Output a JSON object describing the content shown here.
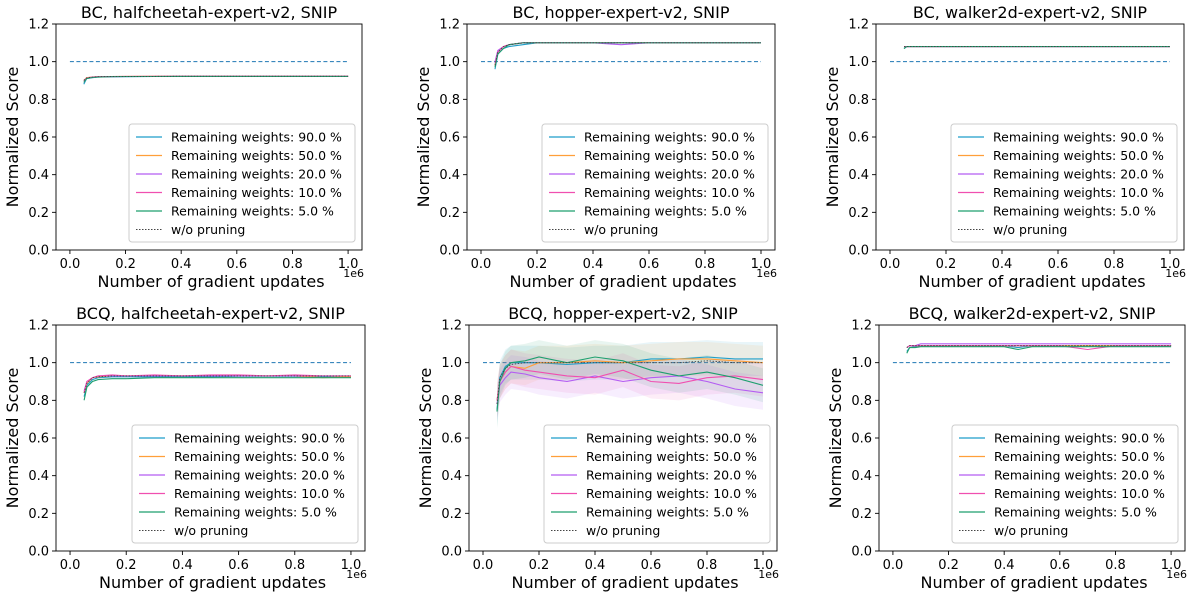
{
  "figure": {
    "colors": {
      "baseline": "#1f77b4",
      "series": [
        "#1f9ec9",
        "#ff9f3a",
        "#b45cf2",
        "#f04fb0",
        "#1e9f6e"
      ],
      "reference": "#444444"
    }
  },
  "chart_data": [
    {
      "type": "line",
      "title": "BC, halfcheetah-expert-v2, SNIP",
      "xlabel": "Number of gradient updates",
      "ylabel": "Normalized Score",
      "x_offset_label": "1e6",
      "xlim": [
        -0.05,
        1.05
      ],
      "ylim": [
        0.0,
        1.2
      ],
      "xticks": [
        "0.0",
        "0.2",
        "0.4",
        "0.6",
        "0.8",
        "1.0"
      ],
      "yticks": [
        "0.0",
        "0.2",
        "0.4",
        "0.6",
        "0.8",
        "1.0",
        "1.2"
      ],
      "grid": false,
      "legend_position": "lower-right",
      "baseline": 1.0,
      "x": [
        0.05,
        0.06,
        0.08,
        0.1,
        0.15,
        0.2,
        0.3,
        0.4,
        0.5,
        0.6,
        0.7,
        0.8,
        0.9,
        1.0
      ],
      "series": [
        {
          "name": "Remaining weights: 90.0 %",
          "values": [
            0.88,
            0.91,
            0.915,
            0.918,
            0.92,
            0.92,
            0.921,
            0.922,
            0.922,
            0.922,
            0.922,
            0.922,
            0.922,
            0.922
          ]
        },
        {
          "name": "Remaining weights: 50.0 %",
          "values": [
            0.9,
            0.915,
            0.918,
            0.92,
            0.921,
            0.922,
            0.923,
            0.923,
            0.923,
            0.923,
            0.923,
            0.923,
            0.923,
            0.923
          ]
        },
        {
          "name": "Remaining weights: 20.0 %",
          "values": [
            0.89,
            0.912,
            0.917,
            0.919,
            0.92,
            0.921,
            0.922,
            0.922,
            0.922,
            0.922,
            0.922,
            0.922,
            0.922,
            0.922
          ]
        },
        {
          "name": "Remaining weights: 10.0 %",
          "values": [
            0.9,
            0.913,
            0.918,
            0.92,
            0.921,
            0.922,
            0.922,
            0.923,
            0.923,
            0.923,
            0.923,
            0.923,
            0.923,
            0.923
          ]
        },
        {
          "name": "Remaining weights: 5.0 %",
          "values": [
            0.89,
            0.91,
            0.916,
            0.918,
            0.92,
            0.921,
            0.921,
            0.922,
            0.922,
            0.922,
            0.922,
            0.922,
            0.922,
            0.922
          ]
        },
        {
          "name": "w/o pruning",
          "values": [
            0.9,
            0.914,
            0.918,
            0.92,
            0.921,
            0.922,
            0.922,
            0.923,
            0.923,
            0.923,
            0.923,
            0.923,
            0.923,
            0.923
          ]
        }
      ]
    },
    {
      "type": "line",
      "title": "BC, hopper-expert-v2, SNIP",
      "xlabel": "Number of gradient updates",
      "ylabel": "Normalized Score",
      "x_offset_label": "1e6",
      "xlim": [
        -0.05,
        1.05
      ],
      "ylim": [
        0.0,
        1.2
      ],
      "xticks": [
        "0.0",
        "0.2",
        "0.4",
        "0.6",
        "0.8",
        "1.0"
      ],
      "yticks": [
        "0.0",
        "0.2",
        "0.4",
        "0.6",
        "0.8",
        "1.0",
        "1.2"
      ],
      "grid": false,
      "legend_position": "lower-right",
      "baseline": 1.0,
      "x": [
        0.05,
        0.06,
        0.08,
        0.1,
        0.15,
        0.2,
        0.3,
        0.4,
        0.5,
        0.6,
        0.7,
        0.8,
        0.9,
        1.0
      ],
      "series": [
        {
          "name": "Remaining weights: 90.0 %",
          "values": [
            0.96,
            1.04,
            1.07,
            1.08,
            1.09,
            1.1,
            1.1,
            1.1,
            1.1,
            1.1,
            1.1,
            1.1,
            1.1,
            1.1
          ]
        },
        {
          "name": "Remaining weights: 50.0 %",
          "values": [
            0.98,
            1.05,
            1.08,
            1.09,
            1.1,
            1.1,
            1.1,
            1.1,
            1.1,
            1.1,
            1.1,
            1.1,
            1.1,
            1.1
          ]
        },
        {
          "name": "Remaining weights: 20.0 %",
          "values": [
            1.0,
            1.06,
            1.08,
            1.09,
            1.1,
            1.1,
            1.1,
            1.1,
            1.09,
            1.1,
            1.1,
            1.1,
            1.1,
            1.1
          ]
        },
        {
          "name": "Remaining weights: 10.0 %",
          "values": [
            0.99,
            1.05,
            1.08,
            1.09,
            1.1,
            1.1,
            1.1,
            1.1,
            1.1,
            1.1,
            1.1,
            1.1,
            1.1,
            1.1
          ]
        },
        {
          "name": "Remaining weights: 5.0 %",
          "values": [
            0.97,
            1.04,
            1.07,
            1.09,
            1.1,
            1.1,
            1.1,
            1.1,
            1.1,
            1.1,
            1.1,
            1.1,
            1.1,
            1.1
          ]
        },
        {
          "name": "w/o pruning",
          "values": [
            0.98,
            1.05,
            1.08,
            1.09,
            1.1,
            1.1,
            1.1,
            1.1,
            1.1,
            1.1,
            1.1,
            1.1,
            1.1,
            1.1
          ]
        }
      ]
    },
    {
      "type": "line",
      "title": "BC, walker2d-expert-v2, SNIP",
      "xlabel": "Number of gradient updates",
      "ylabel": "Normalized Score",
      "x_offset_label": "1e6",
      "xlim": [
        -0.05,
        1.05
      ],
      "ylim": [
        0.0,
        1.2
      ],
      "xticks": [
        "0.0",
        "0.2",
        "0.4",
        "0.6",
        "0.8",
        "1.0"
      ],
      "yticks": [
        "0.0",
        "0.2",
        "0.4",
        "0.6",
        "0.8",
        "1.0",
        "1.2"
      ],
      "grid": false,
      "legend_position": "lower-right",
      "baseline": 1.0,
      "x": [
        0.05,
        0.06,
        0.08,
        0.1,
        0.15,
        0.2,
        0.3,
        0.4,
        0.5,
        0.6,
        0.7,
        0.8,
        0.9,
        1.0
      ],
      "series": [
        {
          "name": "Remaining weights: 90.0 %",
          "values": [
            1.07,
            1.08,
            1.08,
            1.08,
            1.08,
            1.08,
            1.08,
            1.08,
            1.08,
            1.08,
            1.08,
            1.08,
            1.08,
            1.08
          ]
        },
        {
          "name": "Remaining weights: 50.0 %",
          "values": [
            1.08,
            1.08,
            1.08,
            1.08,
            1.08,
            1.08,
            1.08,
            1.08,
            1.08,
            1.08,
            1.08,
            1.08,
            1.08,
            1.08
          ]
        },
        {
          "name": "Remaining weights: 20.0 %",
          "values": [
            1.08,
            1.08,
            1.08,
            1.08,
            1.08,
            1.08,
            1.08,
            1.08,
            1.08,
            1.08,
            1.08,
            1.08,
            1.08,
            1.08
          ]
        },
        {
          "name": "Remaining weights: 10.0 %",
          "values": [
            1.08,
            1.08,
            1.08,
            1.08,
            1.08,
            1.08,
            1.08,
            1.08,
            1.08,
            1.08,
            1.08,
            1.08,
            1.08,
            1.08
          ]
        },
        {
          "name": "Remaining weights: 5.0 %",
          "values": [
            1.07,
            1.08,
            1.08,
            1.08,
            1.08,
            1.08,
            1.08,
            1.08,
            1.08,
            1.08,
            1.08,
            1.08,
            1.08,
            1.08
          ]
        },
        {
          "name": "w/o pruning",
          "values": [
            1.08,
            1.08,
            1.08,
            1.08,
            1.08,
            1.08,
            1.08,
            1.08,
            1.08,
            1.08,
            1.08,
            1.08,
            1.08,
            1.08
          ]
        }
      ]
    },
    {
      "type": "line",
      "title": "BCQ, halfcheetah-expert-v2, SNIP",
      "xlabel": "Number of gradient updates",
      "ylabel": "Normalized Score",
      "x_offset_label": "1e6",
      "xlim": [
        -0.05,
        1.05
      ],
      "ylim": [
        0.0,
        1.2
      ],
      "xticks": [
        "0.0",
        "0.2",
        "0.4",
        "0.6",
        "0.8",
        "1.0"
      ],
      "yticks": [
        "0.0",
        "0.2",
        "0.4",
        "0.6",
        "0.8",
        "1.0",
        "1.2"
      ],
      "grid": false,
      "legend_position": "lower-right",
      "baseline": 1.0,
      "x": [
        0.05,
        0.06,
        0.08,
        0.1,
        0.15,
        0.2,
        0.3,
        0.4,
        0.5,
        0.6,
        0.7,
        0.8,
        0.9,
        1.0
      ],
      "series": [
        {
          "name": "Remaining weights: 90.0 %",
          "values": [
            0.82,
            0.88,
            0.91,
            0.92,
            0.925,
            0.925,
            0.925,
            0.925,
            0.925,
            0.928,
            0.928,
            0.928,
            0.925,
            0.925
          ]
        },
        {
          "name": "Remaining weights: 50.0 %",
          "values": [
            0.84,
            0.89,
            0.92,
            0.925,
            0.93,
            0.93,
            0.93,
            0.93,
            0.93,
            0.93,
            0.93,
            0.93,
            0.92,
            0.925
          ]
        },
        {
          "name": "Remaining weights: 20.0 %",
          "values": [
            0.85,
            0.9,
            0.92,
            0.93,
            0.93,
            0.93,
            0.93,
            0.93,
            0.93,
            0.93,
            0.93,
            0.93,
            0.93,
            0.93
          ]
        },
        {
          "name": "Remaining weights: 10.0 %",
          "values": [
            0.84,
            0.9,
            0.92,
            0.93,
            0.935,
            0.93,
            0.935,
            0.93,
            0.935,
            0.935,
            0.93,
            0.935,
            0.93,
            0.93
          ]
        },
        {
          "name": "Remaining weights: 5.0 %",
          "values": [
            0.8,
            0.87,
            0.9,
            0.91,
            0.915,
            0.915,
            0.92,
            0.92,
            0.92,
            0.92,
            0.92,
            0.92,
            0.92,
            0.92
          ]
        },
        {
          "name": "w/o pruning",
          "values": [
            0.84,
            0.89,
            0.92,
            0.925,
            0.93,
            0.93,
            0.93,
            0.93,
            0.93,
            0.93,
            0.93,
            0.93,
            0.93,
            0.93
          ]
        }
      ]
    },
    {
      "type": "line",
      "title": "BCQ, hopper-expert-v2, SNIP",
      "xlabel": "Number of gradient updates",
      "ylabel": "Normalized Score",
      "x_offset_label": "1e6",
      "xlim": [
        -0.05,
        1.05
      ],
      "ylim": [
        0.0,
        1.2
      ],
      "xticks": [
        "0.0",
        "0.2",
        "0.4",
        "0.6",
        "0.8",
        "1.0"
      ],
      "yticks": [
        "0.0",
        "0.2",
        "0.4",
        "0.6",
        "0.8",
        "1.0",
        "1.2"
      ],
      "grid": false,
      "legend_position": "lower-right",
      "baseline": 1.0,
      "x": [
        0.05,
        0.06,
        0.08,
        0.1,
        0.15,
        0.2,
        0.3,
        0.4,
        0.5,
        0.6,
        0.7,
        0.8,
        0.9,
        1.0
      ],
      "series": [
        {
          "name": "Remaining weights: 90.0 %",
          "values": [
            0.75,
            0.92,
            0.98,
            1.0,
            1.0,
            1.0,
            0.99,
            1.0,
            1.0,
            1.02,
            1.02,
            1.03,
            1.02,
            1.02
          ]
        },
        {
          "name": "Remaining weights: 50.0 %",
          "values": [
            0.8,
            0.9,
            0.95,
            0.98,
            0.97,
            1.0,
            1.0,
            1.01,
            1.0,
            1.01,
            1.02,
            1.02,
            1.01,
            1.0
          ]
        },
        {
          "name": "Remaining weights: 20.0 %",
          "values": [
            0.78,
            0.88,
            0.92,
            0.95,
            0.94,
            0.92,
            0.9,
            0.93,
            0.9,
            0.92,
            0.93,
            0.9,
            0.86,
            0.84
          ]
        },
        {
          "name": "Remaining weights: 10.0 %",
          "values": [
            0.8,
            0.9,
            0.95,
            0.98,
            0.96,
            0.95,
            0.93,
            0.92,
            0.96,
            0.9,
            0.89,
            0.92,
            0.93,
            0.91
          ]
        },
        {
          "name": "Remaining weights: 5.0 %",
          "values": [
            0.74,
            0.9,
            0.97,
            1.0,
            1.01,
            1.03,
            1.0,
            1.03,
            1.01,
            0.96,
            0.93,
            0.95,
            0.92,
            0.88
          ]
        },
        {
          "name": "w/o pruning",
          "values": [
            0.78,
            0.92,
            0.97,
            0.99,
            1.0,
            1.0,
            1.0,
            1.0,
            1.0,
            1.0,
            1.0,
            1.01,
            1.0,
            1.0
          ]
        }
      ]
    },
    {
      "type": "line",
      "title": "BCQ, walker2d-expert-v2, SNIP",
      "xlabel": "Number of gradient updates",
      "ylabel": "Normalized Score",
      "x_offset_label": "1e6",
      "xlim": [
        -0.05,
        1.05
      ],
      "ylim": [
        0.0,
        1.2
      ],
      "xticks": [
        "0.0",
        "0.2",
        "0.4",
        "0.6",
        "0.8",
        "1.0"
      ],
      "yticks": [
        "0.0",
        "0.2",
        "0.4",
        "0.6",
        "0.8",
        "1.0",
        "1.2"
      ],
      "grid": false,
      "legend_position": "lower-right",
      "baseline": 1.0,
      "x": [
        0.05,
        0.06,
        0.08,
        0.1,
        0.15,
        0.2,
        0.3,
        0.4,
        0.45,
        0.5,
        0.6,
        0.7,
        0.8,
        0.9,
        1.0
      ],
      "series": [
        {
          "name": "Remaining weights: 90.0 %",
          "values": [
            1.06,
            1.08,
            1.085,
            1.09,
            1.09,
            1.09,
            1.09,
            1.09,
            1.08,
            1.09,
            1.09,
            1.09,
            1.09,
            1.09,
            1.09
          ]
        },
        {
          "name": "Remaining weights: 50.0 %",
          "values": [
            1.08,
            1.09,
            1.09,
            1.09,
            1.09,
            1.09,
            1.09,
            1.09,
            1.09,
            1.09,
            1.09,
            1.09,
            1.09,
            1.09,
            1.09
          ]
        },
        {
          "name": "Remaining weights: 20.0 %",
          "values": [
            1.08,
            1.09,
            1.09,
            1.1,
            1.1,
            1.1,
            1.1,
            1.1,
            1.1,
            1.1,
            1.1,
            1.1,
            1.1,
            1.1,
            1.1
          ]
        },
        {
          "name": "Remaining weights: 10.0 %",
          "values": [
            1.08,
            1.09,
            1.09,
            1.09,
            1.09,
            1.09,
            1.09,
            1.09,
            1.09,
            1.09,
            1.09,
            1.07,
            1.09,
            1.09,
            1.09
          ]
        },
        {
          "name": "Remaining weights: 5.0 %",
          "values": [
            1.05,
            1.08,
            1.08,
            1.085,
            1.085,
            1.085,
            1.085,
            1.085,
            1.07,
            1.085,
            1.085,
            1.085,
            1.085,
            1.085,
            1.085
          ]
        },
        {
          "name": "w/o pruning",
          "values": [
            1.08,
            1.09,
            1.09,
            1.09,
            1.09,
            1.09,
            1.09,
            1.09,
            1.09,
            1.09,
            1.09,
            1.09,
            1.09,
            1.09,
            1.09
          ]
        }
      ]
    }
  ]
}
